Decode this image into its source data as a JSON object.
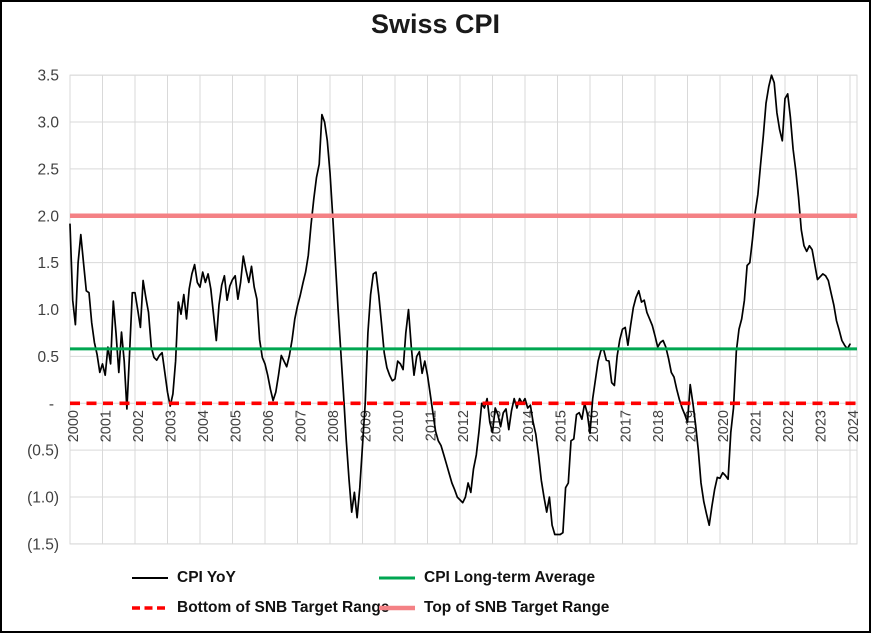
{
  "title": "Swiss CPI",
  "colors": {
    "cpi_line": "#000000",
    "long_term_average": "#00A651",
    "snb_bottom": "#FE0000",
    "snb_top": "#F48185",
    "gridline": "#D9D9D9",
    "tick_label": "#404040",
    "title_text": "#1a1a1a"
  },
  "legend": {
    "items": [
      {
        "label": "CPI YoY"
      },
      {
        "label": "CPI Long-term Average"
      },
      {
        "label": "Bottom of SNB Target Range"
      },
      {
        "label": "Top of SNB Target Range"
      }
    ]
  },
  "chart_data": {
    "type": "line",
    "title": "Swiss CPI",
    "xlabel": "",
    "ylabel": "",
    "grid": true,
    "legend_position": "bottom",
    "ylim": [
      -1.5,
      3.5
    ],
    "y_ticks": [
      {
        "value": 3.5,
        "label": "3.5"
      },
      {
        "value": 3.0,
        "label": "3.0"
      },
      {
        "value": 2.5,
        "label": "2.5"
      },
      {
        "value": 2.0,
        "label": "2.0"
      },
      {
        "value": 1.5,
        "label": "1.5"
      },
      {
        "value": 1.0,
        "label": "1.0"
      },
      {
        "value": 0.5,
        "label": "0.5"
      },
      {
        "value": 0.0,
        "label": "-"
      },
      {
        "value": -0.5,
        "label": "(0.5)"
      },
      {
        "value": -1.0,
        "label": "(1.0)"
      },
      {
        "value": -1.5,
        "label": "(1.5)"
      }
    ],
    "x_tick_labels": [
      "2000",
      "2001",
      "2002",
      "2003",
      "2004",
      "2005",
      "2006",
      "2007",
      "2008",
      "2009",
      "2010",
      "2011",
      "2012",
      "2013",
      "2014",
      "2015",
      "2016",
      "2017",
      "2018",
      "2019",
      "2020",
      "2021",
      "2022",
      "2023",
      "2024"
    ],
    "x_start_year": 2000,
    "points_per_year": 12,
    "series": [
      {
        "name": "CPI YoY",
        "kind": "line",
        "color": "#000000",
        "values": [
          1.91,
          1.1,
          0.84,
          1.5,
          1.8,
          1.5,
          1.2,
          1.18,
          0.86,
          0.65,
          0.52,
          0.33,
          0.42,
          0.3,
          0.6,
          0.42,
          1.09,
          0.75,
          0.33,
          0.76,
          0.45,
          -0.06,
          0.54,
          1.18,
          1.18,
          1.0,
          0.81,
          1.31,
          1.13,
          0.97,
          0.6,
          0.49,
          0.46,
          0.51,
          0.54,
          0.33,
          0.12,
          -0.03,
          0.1,
          0.45,
          1.08,
          0.95,
          1.16,
          0.9,
          1.22,
          1.38,
          1.48,
          1.29,
          1.24,
          1.4,
          1.29,
          1.38,
          1.22,
          0.95,
          0.67,
          1.05,
          1.26,
          1.36,
          1.1,
          1.25,
          1.32,
          1.36,
          1.11,
          1.29,
          1.57,
          1.42,
          1.29,
          1.46,
          1.24,
          1.11,
          0.68,
          0.49,
          0.42,
          0.3,
          0.15,
          0.03,
          0.12,
          0.3,
          0.51,
          0.45,
          0.39,
          0.51,
          0.68,
          0.9,
          1.04,
          1.15,
          1.28,
          1.4,
          1.58,
          1.9,
          2.18,
          2.41,
          2.55,
          3.08,
          3.0,
          2.8,
          2.46,
          2.0,
          1.5,
          1.0,
          0.55,
          0.1,
          -0.4,
          -0.81,
          -1.16,
          -0.95,
          -1.22,
          -0.9,
          -0.45,
          0.0,
          0.75,
          1.16,
          1.38,
          1.4,
          1.15,
          0.85,
          0.54,
          0.38,
          0.3,
          0.24,
          0.26,
          0.45,
          0.42,
          0.36,
          0.75,
          1.0,
          0.6,
          0.3,
          0.5,
          0.55,
          0.32,
          0.45,
          0.3,
          0.1,
          -0.1,
          -0.3,
          -0.4,
          -0.45,
          -0.55,
          -0.65,
          -0.75,
          -0.85,
          -0.92,
          -1.0,
          -1.03,
          -1.06,
          -1.0,
          -0.85,
          -0.95,
          -0.7,
          -0.55,
          -0.3,
          0.0,
          -0.05,
          0.05,
          -0.2,
          -0.31,
          -0.05,
          -0.12,
          -0.25,
          -0.1,
          -0.06,
          -0.28,
          -0.08,
          0.05,
          -0.05,
          0.05,
          0.0,
          0.05,
          -0.05,
          -0.02,
          -0.2,
          -0.33,
          -0.55,
          -0.82,
          -1.0,
          -1.16,
          -1.0,
          -1.3,
          -1.4,
          -1.4,
          -1.4,
          -1.38,
          -0.9,
          -0.85,
          -0.4,
          -0.38,
          -0.12,
          -0.1,
          -0.17,
          0.0,
          -0.11,
          -0.32,
          0.05,
          0.25,
          0.45,
          0.56,
          0.58,
          0.46,
          0.45,
          0.22,
          0.19,
          0.5,
          0.68,
          0.79,
          0.81,
          0.62,
          0.83,
          1.02,
          1.13,
          1.2,
          1.08,
          1.1,
          0.97,
          0.9,
          0.83,
          0.72,
          0.6,
          0.65,
          0.67,
          0.6,
          0.48,
          0.33,
          0.28,
          0.15,
          0.04,
          -0.05,
          -0.12,
          -0.2,
          0.2,
          0.0,
          -0.23,
          -0.5,
          -0.85,
          -1.05,
          -1.18,
          -1.3,
          -1.1,
          -0.92,
          -0.79,
          -0.8,
          -0.74,
          -0.77,
          -0.81,
          -0.31,
          -0.05,
          0.55,
          0.79,
          0.9,
          1.1,
          1.47,
          1.5,
          1.75,
          2.04,
          2.23,
          2.55,
          2.85,
          3.2,
          3.38,
          3.5,
          3.42,
          3.1,
          2.92,
          2.8,
          3.25,
          3.3,
          3.05,
          2.71,
          2.48,
          2.2,
          1.85,
          1.68,
          1.62,
          1.68,
          1.64,
          1.48,
          1.32,
          1.35,
          1.38,
          1.36,
          1.31,
          1.18,
          1.05,
          0.88,
          0.78,
          0.67,
          0.62,
          0.58,
          0.63
        ]
      },
      {
        "name": "CPI Long-term Average",
        "kind": "constant",
        "color": "#00A651",
        "value": 0.58,
        "width": 3,
        "dashed": false
      },
      {
        "name": "Bottom of SNB Target Range",
        "kind": "constant",
        "color": "#FE0000",
        "value": 0.0,
        "width": 3.6,
        "dashed": true
      },
      {
        "name": "Top of SNB Target Range",
        "kind": "constant",
        "color": "#F48185",
        "value": 2.0,
        "width": 4.5,
        "dashed": false
      }
    ]
  }
}
